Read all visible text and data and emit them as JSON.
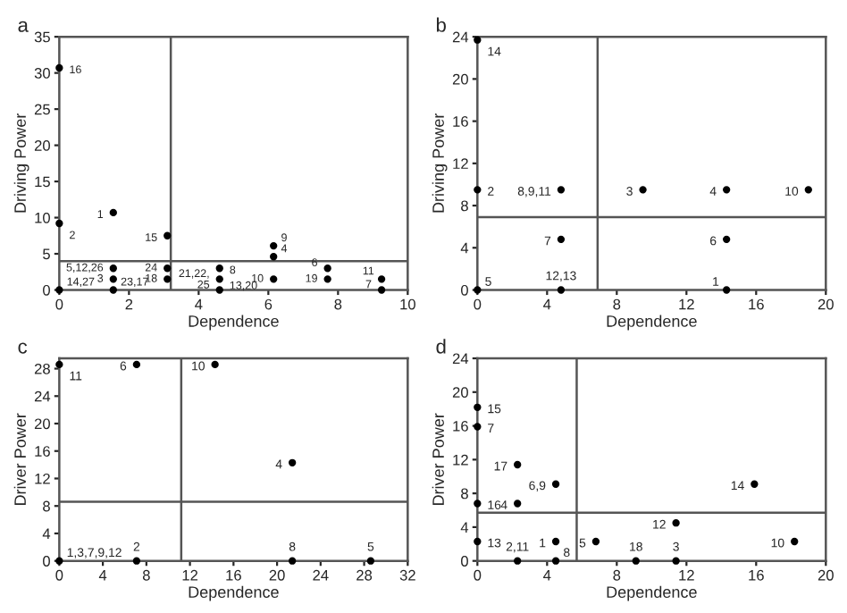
{
  "chart_data": [
    {
      "type": "scatter",
      "title": "a",
      "xlabel": "Dependence",
      "ylabel": "Driving Power",
      "marker": "circle",
      "grid": false,
      "series": [
        {
          "color": "#000000",
          "x": [
            0,
            0,
            1.55,
            3.1,
            6.15,
            6.15,
            1.55,
            3.1,
            4.6,
            4.6,
            1.55,
            3.1,
            0,
            1.55,
            4.6,
            6.15,
            7.7,
            7.7,
            9.25,
            9.25
          ],
          "values": [
            30.7,
            9.2,
            10.7,
            7.5,
            6.1,
            4.6,
            3.0,
            3.0,
            3.0,
            1.5,
            1.5,
            1.5,
            0,
            0,
            0,
            1.5,
            3.0,
            1.5,
            1.5,
            0
          ]
        }
      ],
      "xlim": [
        0,
        10
      ],
      "ylim": [
        0,
        35
      ],
      "xticks": [
        0,
        2,
        4,
        6,
        8,
        10
      ],
      "yticks": [
        0,
        5,
        10,
        15,
        20,
        25,
        30,
        35
      ],
      "ref_lines": [
        {
          "axis": "x",
          "value": 3.2,
          "color": "#555555"
        },
        {
          "axis": "y",
          "value": 4,
          "color": "#555555"
        }
      ],
      "annotations": [
        {
          "text": "16",
          "x": 0,
          "y": 30.7
        },
        {
          "text": "2",
          "x": 0,
          "y": 9.2
        },
        {
          "text": "1",
          "x": 1.55,
          "y": 10.7
        },
        {
          "text": "15",
          "x": 3.1,
          "y": 7.5
        },
        {
          "text": "9",
          "x": 6.15,
          "y": 6.1
        },
        {
          "text": "4",
          "x": 6.15,
          "y": 4.6
        },
        {
          "text": "5,12,26",
          "x": 1.55,
          "y": 3.0
        },
        {
          "text": "24",
          "x": 3.1,
          "y": 3.0
        },
        {
          "text": "8",
          "x": 4.6,
          "y": 3.0
        },
        {
          "text": "21,22,",
          "x": 4.6,
          "y": 1.5
        },
        {
          "text": "25",
          "x": 4.6,
          "y": 1.5
        },
        {
          "text": "3",
          "x": 1.55,
          "y": 1.5
        },
        {
          "text": "18",
          "x": 3.1,
          "y": 1.5
        },
        {
          "text": "14,27",
          "x": 0,
          "y": 0
        },
        {
          "text": "23,17",
          "x": 1.55,
          "y": 0
        },
        {
          "text": "13,20",
          "x": 4.6,
          "y": 0
        },
        {
          "text": "10",
          "x": 6.15,
          "y": 1.5
        },
        {
          "text": "6",
          "x": 7.7,
          "y": 3.0
        },
        {
          "text": "19",
          "x": 7.7,
          "y": 1.5
        },
        {
          "text": "11",
          "x": 9.25,
          "y": 1.5
        },
        {
          "text": "7",
          "x": 9.25,
          "y": 0
        }
      ]
    },
    {
      "type": "scatter",
      "title": "b",
      "xlabel": "Dependence",
      "ylabel": "Driving Power",
      "marker": "circle",
      "grid": false,
      "series": [
        {
          "color": "#000000",
          "x": [
            0,
            0,
            4.8,
            9.5,
            14.3,
            19,
            4.8,
            14.3,
            0,
            4.8,
            14.3
          ],
          "values": [
            23.7,
            9.5,
            9.5,
            9.5,
            9.5,
            9.5,
            4.8,
            4.8,
            0,
            0,
            0
          ]
        }
      ],
      "xlim": [
        0,
        20
      ],
      "ylim": [
        0,
        24
      ],
      "xticks": [
        0,
        4,
        8,
        12,
        16,
        20
      ],
      "yticks": [
        0,
        4,
        8,
        12,
        16,
        20,
        24
      ],
      "ref_lines": [
        {
          "axis": "x",
          "value": 6.9,
          "color": "#555555"
        },
        {
          "axis": "y",
          "value": 6.9,
          "color": "#555555"
        }
      ],
      "annotations": [
        {
          "text": "14",
          "x": 0,
          "y": 23.7
        },
        {
          "text": "2",
          "x": 0,
          "y": 9.5
        },
        {
          "text": "8,9,11",
          "x": 4.8,
          "y": 9.5
        },
        {
          "text": "3",
          "x": 9.5,
          "y": 9.5
        },
        {
          "text": "4",
          "x": 14.3,
          "y": 9.5
        },
        {
          "text": "10",
          "x": 19,
          "y": 9.5
        },
        {
          "text": "7",
          "x": 4.8,
          "y": 4.8
        },
        {
          "text": "6",
          "x": 14.3,
          "y": 4.8
        },
        {
          "text": "5",
          "x": 0,
          "y": 0
        },
        {
          "text": "12,13",
          "x": 4.8,
          "y": 0
        },
        {
          "text": "1",
          "x": 14.3,
          "y": 0
        }
      ]
    },
    {
      "type": "scatter",
      "title": "c",
      "xlabel": "Dependence",
      "ylabel": "Driver Power",
      "marker": "circle",
      "grid": false,
      "series": [
        {
          "color": "#000000",
          "x": [
            0,
            7.1,
            14.3,
            21.4,
            0,
            7.1,
            21.4,
            28.6
          ],
          "values": [
            28.6,
            28.6,
            28.6,
            14.3,
            0,
            0,
            0,
            0
          ]
        }
      ],
      "xlim": [
        0,
        32
      ],
      "ylim": [
        0,
        29.5
      ],
      "xticks": [
        0,
        4,
        8,
        12,
        16,
        20,
        24,
        28,
        32
      ],
      "yticks": [
        0,
        4,
        8,
        12,
        16,
        20,
        24,
        28
      ],
      "ref_lines": [
        {
          "axis": "x",
          "value": 11.2,
          "color": "#555555"
        },
        {
          "axis": "y",
          "value": 8.6,
          "color": "#555555"
        }
      ],
      "annotations": [
        {
          "text": "11",
          "x": 0,
          "y": 28.6
        },
        {
          "text": "6",
          "x": 7.1,
          "y": 28.6
        },
        {
          "text": "10",
          "x": 14.3,
          "y": 28.6
        },
        {
          "text": "4",
          "x": 21.4,
          "y": 14.3
        },
        {
          "text": "1,3,7,9,12",
          "x": 0,
          "y": 0
        },
        {
          "text": "2",
          "x": 7.1,
          "y": 0
        },
        {
          "text": "8",
          "x": 21.4,
          "y": 0
        },
        {
          "text": "5",
          "x": 28.6,
          "y": 0
        }
      ]
    },
    {
      "type": "scatter",
      "title": "d",
      "xlabel": "Dependence",
      "ylabel": "Driver Power",
      "marker": "circle",
      "grid": false,
      "series": [
        {
          "color": "#000000",
          "x": [
            0,
            0,
            2.3,
            4.5,
            15.9,
            0,
            2.3,
            11.4,
            0,
            4.5,
            6.8,
            18.2,
            2.3,
            4.5,
            9.1,
            11.4
          ],
          "values": [
            18.2,
            15.9,
            11.4,
            9.1,
            9.1,
            6.8,
            6.8,
            4.5,
            2.3,
            2.3,
            2.3,
            2.3,
            0,
            0,
            0,
            0
          ]
        }
      ],
      "xlim": [
        0,
        20
      ],
      "ylim": [
        0,
        24
      ],
      "xticks": [
        0,
        4,
        8,
        12,
        16,
        20
      ],
      "yticks": [
        0,
        4,
        8,
        12,
        16,
        20,
        24
      ],
      "ref_lines": [
        {
          "axis": "x",
          "value": 5.7,
          "color": "#555555"
        },
        {
          "axis": "y",
          "value": 5.7,
          "color": "#555555"
        }
      ],
      "annotations": [
        {
          "text": "15",
          "x": 0,
          "y": 18.2
        },
        {
          "text": "7",
          "x": 0,
          "y": 15.9
        },
        {
          "text": "17",
          "x": 2.3,
          "y": 11.4
        },
        {
          "text": "6,9",
          "x": 4.5,
          "y": 9.1
        },
        {
          "text": "14",
          "x": 15.9,
          "y": 9.1
        },
        {
          "text": "16",
          "x": 0,
          "y": 6.8
        },
        {
          "text": "4",
          "x": 2.3,
          "y": 6.8
        },
        {
          "text": "12",
          "x": 11.4,
          "y": 4.5
        },
        {
          "text": "13",
          "x": 0,
          "y": 2.3
        },
        {
          "text": "1",
          "x": 4.5,
          "y": 2.3
        },
        {
          "text": "5",
          "x": 6.8,
          "y": 2.3
        },
        {
          "text": "10",
          "x": 18.2,
          "y": 2.3
        },
        {
          "text": "2,11",
          "x": 2.3,
          "y": 0
        },
        {
          "text": "8",
          "x": 4.5,
          "y": 0
        },
        {
          "text": "18",
          "x": 9.1,
          "y": 0
        },
        {
          "text": "3",
          "x": 11.4,
          "y": 0
        }
      ]
    }
  ]
}
